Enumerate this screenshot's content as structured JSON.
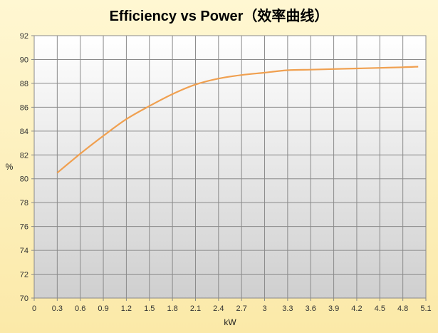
{
  "chart_data": {
    "type": "line",
    "title": "Efficiency vs Power（效率曲线）",
    "xlabel": "kW",
    "ylabel": "%",
    "xlim": [
      0,
      5.1
    ],
    "ylim": [
      70,
      92
    ],
    "x_ticks": [
      "0",
      "0.3",
      "0.6",
      "0.9",
      "1.2",
      "1.5",
      "1.8",
      "2.1",
      "2.4",
      "2.7",
      "3",
      "3.3",
      "3.6",
      "3.9",
      "4.2",
      "4.5",
      "4.8",
      "5.1"
    ],
    "y_ticks": [
      "70",
      "72",
      "74",
      "76",
      "78",
      "80",
      "82",
      "84",
      "86",
      "88",
      "90",
      "92"
    ],
    "grid": true,
    "legend": "none",
    "series_color": "#f0a050",
    "series": [
      {
        "x": [
          0.3,
          0.6,
          0.9,
          1.2,
          1.5,
          1.8,
          2.1,
          2.4,
          2.7,
          3.0,
          3.3,
          3.6,
          3.9,
          4.2,
          4.5,
          4.8,
          5.0
        ],
        "y": [
          80.5,
          82.1,
          83.6,
          85.0,
          86.1,
          87.1,
          87.9,
          88.4,
          88.7,
          88.9,
          89.1,
          89.15,
          89.2,
          89.25,
          89.3,
          89.35,
          89.4
        ]
      }
    ]
  }
}
